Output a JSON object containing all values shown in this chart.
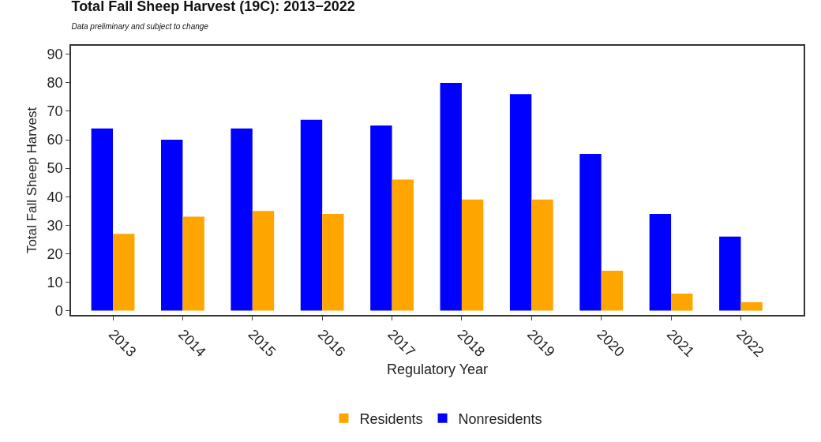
{
  "chart_data": {
    "type": "bar",
    "title": "Total Fall Sheep Harvest (19C): 2013−2022",
    "subtitle": "Data preliminary and subject to change",
    "xlabel": "Regulatory Year",
    "ylabel": "Total Fall Sheep Harvest",
    "categories": [
      "2013",
      "2014",
      "2015",
      "2016",
      "2017",
      "2018",
      "2019",
      "2020",
      "2021",
      "2022"
    ],
    "series": [
      {
        "name": "Nonresidents",
        "color": "#0000ff",
        "values": [
          64,
          60,
          64,
          67,
          65,
          80,
          76,
          55,
          34,
          26
        ]
      },
      {
        "name": "Residents",
        "color": "#ffa500",
        "values": [
          27,
          33,
          35,
          34,
          46,
          39,
          39,
          14,
          6,
          3
        ]
      }
    ],
    "ylim": [
      -1.5,
      93
    ],
    "yticks": [
      0,
      10,
      20,
      30,
      40,
      50,
      60,
      70,
      80,
      90
    ],
    "grid": false,
    "legend": "bottom"
  }
}
